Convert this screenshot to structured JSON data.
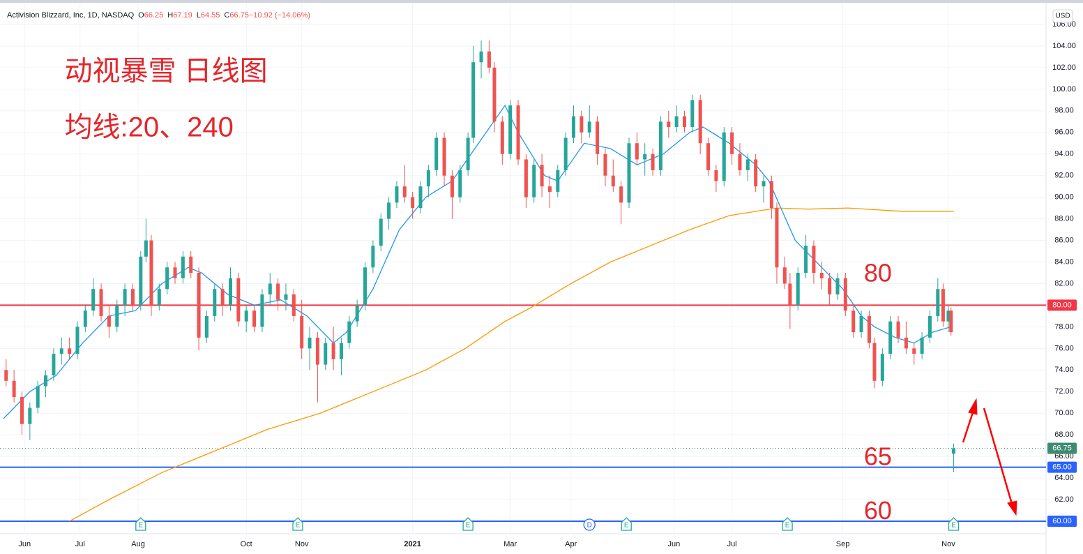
{
  "header": {
    "symbol": "Activision Blizzard, Inc, 1D, NASDAQ",
    "items": [
      {
        "label": "O",
        "value": "66.25"
      },
      {
        "label": "H",
        "value": "67.19"
      },
      {
        "label": "L",
        "value": "64.55"
      },
      {
        "label": "C",
        "value": "66.75"
      },
      {
        "label": "",
        "value": "−10.92 (−14.06%)"
      }
    ],
    "currency": "USD"
  },
  "chart_data": {
    "type": "candlestick",
    "annotations": [
      {
        "text": "动视暴雪 日线图",
        "x": 2,
        "y": 101.5,
        "size": 40
      },
      {
        "text": "均线:20、240",
        "x": 2,
        "y": 96.3,
        "size": 40
      },
      {
        "text": "80",
        "x": 326,
        "y": 82.8,
        "size": 36
      },
      {
        "text": "65",
        "x": 326,
        "y": 65.8,
        "size": 36
      },
      {
        "text": "60",
        "x": 326,
        "y": 60.8,
        "size": 36
      }
    ],
    "xlim": [
      0,
      395
    ],
    "ylim": [
      60,
      106
    ],
    "xticks": [
      {
        "value": 8,
        "label": "Jun"
      },
      {
        "value": 29,
        "label": "Jul"
      },
      {
        "value": 51,
        "label": "Aug"
      },
      {
        "value": 92,
        "label": "Oct"
      },
      {
        "value": 113,
        "label": "Nov"
      },
      {
        "value": 155,
        "label": "2021"
      },
      {
        "value": 192,
        "label": "Mar"
      },
      {
        "value": 215,
        "label": "Apr"
      },
      {
        "value": 254,
        "label": "Jun"
      },
      {
        "value": 276,
        "label": "Jul"
      },
      {
        "value": 318,
        "label": "Sep"
      },
      {
        "value": 358,
        "label": "Nov"
      }
    ],
    "yticks": [
      {
        "value": 62,
        "label": "62.00"
      },
      {
        "value": 64,
        "label": "64.00"
      },
      {
        "value": 66,
        "label": "66.00"
      },
      {
        "value": 68,
        "label": "68.00"
      },
      {
        "value": 70,
        "label": "70.00"
      },
      {
        "value": 72,
        "label": "72.00"
      },
      {
        "value": 74,
        "label": "74.00"
      },
      {
        "value": 76,
        "label": "76.00"
      },
      {
        "value": 78,
        "label": "78.00"
      },
      {
        "value": 80,
        "label": "80.00"
      },
      {
        "value": 82,
        "label": "82.00"
      },
      {
        "value": 84,
        "label": "84.00"
      },
      {
        "value": 86,
        "label": "86.00"
      },
      {
        "value": 88,
        "label": "88.00"
      },
      {
        "value": 90,
        "label": "90.00"
      },
      {
        "value": 92,
        "label": "92.00"
      },
      {
        "value": 94,
        "label": "94.00"
      },
      {
        "value": 96,
        "label": "96.00"
      },
      {
        "value": 98,
        "label": "98.00"
      },
      {
        "value": 100,
        "label": "100.00"
      },
      {
        "value": 102,
        "label": "102.00"
      },
      {
        "value": 104,
        "label": "104.00"
      },
      {
        "value": 106,
        "label": "106.00"
      }
    ],
    "up_color": "#26a69a",
    "down_color": "#ef5350",
    "candles": [
      [
        1,
        74,
        75,
        72.5,
        73
      ],
      [
        4,
        73,
        74,
        71,
        71.5
      ],
      [
        7,
        71.5,
        72,
        68,
        69
      ],
      [
        10,
        69,
        71,
        67.5,
        70.5
      ],
      [
        13,
        70.5,
        73,
        70,
        72.5
      ],
      [
        16,
        72.5,
        74,
        71.5,
        73.5
      ],
      [
        19,
        73.5,
        76,
        73,
        75.5
      ],
      [
        22,
        75.5,
        77,
        74.5,
        76
      ],
      [
        25,
        76,
        77,
        75,
        75.5
      ],
      [
        28,
        75.5,
        78.5,
        75,
        78
      ],
      [
        31,
        78,
        80,
        77.5,
        79.5
      ],
      [
        34,
        79.5,
        82.5,
        79,
        81.5
      ],
      [
        37,
        81.5,
        82,
        78.5,
        79
      ],
      [
        40,
        79,
        80,
        77,
        78
      ],
      [
        43,
        78,
        80.5,
        77.5,
        80
      ],
      [
        46,
        80,
        82,
        79,
        81.5
      ],
      [
        49,
        81.5,
        82,
        79.5,
        80
      ],
      [
        52,
        80,
        85,
        79.5,
        84.5
      ],
      [
        54,
        84.5,
        88,
        84,
        86
      ],
      [
        56,
        86,
        86.5,
        79,
        80
      ],
      [
        59,
        80,
        82,
        79.5,
        81.5
      ],
      [
        62,
        81.5,
        84,
        81,
        83.5
      ],
      [
        65,
        83.5,
        84,
        82,
        82.5
      ],
      [
        68,
        82.5,
        85,
        82,
        84.5
      ],
      [
        71,
        84.5,
        85,
        82.5,
        83
      ],
      [
        74,
        83,
        83.5,
        75.8,
        77
      ],
      [
        77,
        77,
        79.5,
        76.5,
        79
      ],
      [
        80,
        79,
        82,
        78.5,
        81.5
      ],
      [
        83,
        81.5,
        82,
        79,
        80
      ],
      [
        86,
        80,
        83.5,
        79.5,
        82.5
      ],
      [
        89,
        82.5,
        83,
        78,
        78.5
      ],
      [
        92,
        78.5,
        80,
        77.5,
        79.5
      ],
      [
        95,
        79.5,
        80,
        77.5,
        78
      ],
      [
        98,
        78,
        81.5,
        77.5,
        81
      ],
      [
        101,
        81,
        83,
        80,
        82
      ],
      [
        104,
        82,
        82.5,
        79.5,
        80.5
      ],
      [
        107,
        80.5,
        82,
        79.5,
        81
      ],
      [
        110,
        81,
        81.5,
        78.5,
        79
      ],
      [
        113,
        79,
        80.5,
        75,
        76
      ],
      [
        116,
        76,
        78,
        74,
        77
      ],
      [
        119,
        77,
        77.5,
        71,
        74.5
      ],
      [
        122,
        74.5,
        77,
        74,
        76.5
      ],
      [
        125,
        76.5,
        78,
        74,
        75
      ],
      [
        128,
        75,
        77,
        73.5,
        76.5
      ],
      [
        131,
        76.5,
        79,
        76,
        78.5
      ],
      [
        134,
        78.5,
        80.5,
        78,
        80
      ],
      [
        137,
        80,
        84,
        79.5,
        83.5
      ],
      [
        140,
        83.5,
        86,
        83,
        85.5
      ],
      [
        143,
        85.5,
        88.5,
        85,
        88
      ],
      [
        146,
        88,
        90,
        87,
        89.5
      ],
      [
        149,
        89.5,
        91.5,
        89,
        91
      ],
      [
        152,
        91,
        93,
        89.5,
        90
      ],
      [
        155,
        90,
        90.5,
        88,
        89
      ],
      [
        158,
        89,
        91.5,
        88.5,
        91
      ],
      [
        161,
        91,
        93,
        90,
        92.5
      ],
      [
        164,
        92.5,
        96,
        92,
        95.5
      ],
      [
        167,
        95.5,
        96,
        91,
        92
      ],
      [
        170,
        92,
        92.5,
        88,
        90
      ],
      [
        173,
        90,
        93,
        89.5,
        92.5
      ],
      [
        176,
        92.5,
        96,
        92,
        95.5
      ],
      [
        178,
        95.5,
        104,
        95,
        102.5
      ],
      [
        181,
        102.5,
        104.5,
        101,
        103.5
      ],
      [
        184,
        103.5,
        104.5,
        101.5,
        102
      ],
      [
        186,
        102,
        102.5,
        96,
        97
      ],
      [
        189,
        97,
        97.5,
        93,
        94
      ],
      [
        192,
        94,
        99,
        93.5,
        98.5
      ],
      [
        195,
        98.5,
        99,
        93,
        93.5
      ],
      [
        198,
        93.5,
        94,
        89,
        90
      ],
      [
        201,
        90,
        93.5,
        89.5,
        93
      ],
      [
        204,
        93,
        94,
        90,
        91
      ],
      [
        207,
        91,
        92,
        89,
        90.5
      ],
      [
        210,
        90.5,
        93,
        90,
        92.5
      ],
      [
        213,
        92.5,
        96,
        92,
        95.5
      ],
      [
        216,
        95.5,
        98.5,
        95,
        97.5
      ],
      [
        219,
        97.5,
        98,
        95,
        96
      ],
      [
        222,
        96,
        98.5,
        95.5,
        97
      ],
      [
        225,
        97,
        97.5,
        93,
        94
      ],
      [
        228,
        94,
        94.5,
        91,
        92
      ],
      [
        231,
        92,
        93.5,
        90.5,
        91
      ],
      [
        234,
        91,
        91.5,
        87.5,
        89.5
      ],
      [
        237,
        89.5,
        95.5,
        89,
        95
      ],
      [
        240,
        95,
        96,
        93,
        93.5
      ],
      [
        243,
        93.5,
        95,
        92,
        94
      ],
      [
        246,
        94,
        94.5,
        92,
        92.5
      ],
      [
        249,
        92.5,
        97.5,
        92,
        97
      ],
      [
        252,
        97,
        98,
        95.5,
        96.5
      ],
      [
        255,
        96.5,
        98.5,
        96,
        97.5
      ],
      [
        258,
        97.5,
        98,
        96,
        96.5
      ],
      [
        261,
        96.5,
        99.5,
        96,
        99
      ],
      [
        264,
        99,
        99.5,
        94,
        95
      ],
      [
        267,
        95,
        95.5,
        92,
        92.5
      ],
      [
        270,
        92.5,
        93,
        90.5,
        91.5
      ],
      [
        273,
        91.5,
        96.5,
        91,
        96
      ],
      [
        276,
        96,
        96.5,
        93,
        94
      ],
      [
        279,
        94,
        95,
        92,
        92.5
      ],
      [
        282,
        92.5,
        94,
        91.5,
        93.5
      ],
      [
        285,
        93.5,
        94,
        90.5,
        91
      ],
      [
        288,
        91,
        92,
        89.5,
        91.5
      ],
      [
        291,
        91.5,
        92,
        88,
        89
      ],
      [
        293,
        89,
        89.5,
        82,
        83.5
      ],
      [
        296,
        83.5,
        84.5,
        81.5,
        82
      ],
      [
        298,
        82,
        83,
        77.8,
        80
      ],
      [
        301,
        80,
        83.5,
        79.5,
        83
      ],
      [
        304,
        83,
        86.5,
        82.5,
        85.5
      ],
      [
        307,
        85.5,
        86,
        82,
        83
      ],
      [
        310,
        83,
        84,
        81.5,
        82.5
      ],
      [
        313,
        82.5,
        83,
        80,
        81
      ],
      [
        316,
        81,
        83,
        80.5,
        82.5
      ],
      [
        319,
        82.5,
        83,
        79,
        79.5
      ],
      [
        322,
        79.5,
        80,
        77,
        77.5
      ],
      [
        325,
        77.5,
        79.5,
        77,
        79
      ],
      [
        328,
        79,
        79.5,
        76,
        76.5
      ],
      [
        330,
        76.5,
        77,
        72.3,
        73
      ],
      [
        333,
        73,
        76,
        72.5,
        75.5
      ],
      [
        336,
        75.5,
        79,
        75,
        78.5
      ],
      [
        339,
        78.5,
        79,
        76.5,
        77
      ],
      [
        342,
        77,
        78.5,
        75.5,
        76
      ],
      [
        345,
        76,
        76.5,
        74.5,
        75.5
      ],
      [
        348,
        75.5,
        77.5,
        75,
        77
      ],
      [
        351,
        77,
        79.5,
        76.5,
        79
      ],
      [
        354,
        79,
        82.5,
        78.5,
        81.5
      ],
      [
        356,
        81.5,
        82,
        78,
        78.5
      ],
      [
        358,
        78.5,
        80,
        77.5,
        79.5
      ],
      [
        359,
        79.5,
        79.8,
        77.2,
        77.5
      ],
      [
        360,
        66.25,
        67.19,
        64.55,
        66.75
      ]
    ],
    "series": [
      {
        "color": "#2196f3",
        "x": [
          0,
          10,
          20,
          30,
          40,
          50,
          60,
          70,
          75,
          85,
          95,
          105,
          115,
          125,
          130,
          140,
          150,
          160,
          170,
          180,
          190,
          195,
          205,
          210,
          220,
          230,
          240,
          250,
          260,
          265,
          275,
          285,
          290,
          300,
          310,
          318,
          325,
          330,
          338,
          345,
          352,
          359
        ],
        "values": [
          69.5,
          72,
          73.5,
          76.5,
          79,
          79.5,
          82,
          83.5,
          83,
          81,
          80,
          80.5,
          79,
          76.5,
          77.5,
          81.5,
          87,
          90,
          91.5,
          95,
          98.5,
          96,
          92,
          91.5,
          95,
          94.5,
          93,
          94,
          96,
          96.5,
          95,
          93,
          91.5,
          86,
          83.5,
          81.5,
          79,
          78,
          77,
          76.5,
          77.5,
          78
        ]
      },
      {
        "color": "#ff9800",
        "x": [
          25,
          40,
          60,
          80,
          100,
          120,
          140,
          160,
          175,
          190,
          200,
          215,
          230,
          245,
          260,
          275,
          293,
          305,
          320,
          340,
          360
        ],
        "values": [
          60,
          62,
          64.5,
          66.5,
          68.5,
          70,
          72,
          74,
          76,
          78.5,
          79.8,
          82,
          84,
          85.5,
          87,
          88.3,
          89,
          88.9,
          89,
          88.7,
          88.7
        ]
      }
    ],
    "hlines": [
      {
        "value": 80,
        "label": "80.00",
        "color": "#f23645"
      },
      {
        "value": 65,
        "label": "65.00",
        "color": "#2962ff"
      },
      {
        "value": 60,
        "label": "60.00",
        "color": "#2962ff"
      }
    ],
    "last_price": {
      "value": 66.75,
      "label": "66.75",
      "color": "#3d8b73"
    },
    "events": [
      {
        "x": 52,
        "label": "E"
      },
      {
        "x": 111.5,
        "label": "E"
      },
      {
        "x": 176,
        "label": "E"
      },
      {
        "x": 222,
        "label": "D"
      },
      {
        "x": 236,
        "label": "E"
      },
      {
        "x": 297,
        "label": "E"
      },
      {
        "x": 360,
        "label": "E"
      }
    ]
  }
}
